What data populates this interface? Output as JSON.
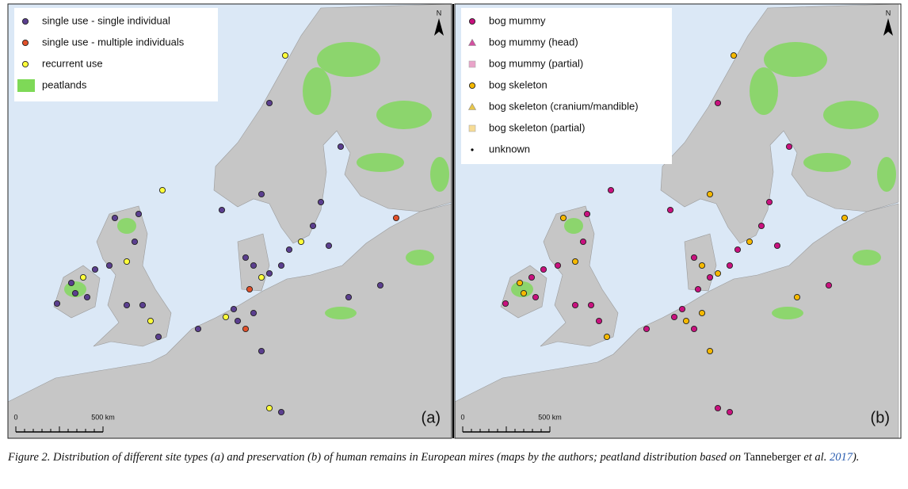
{
  "panels": [
    {
      "legend": [
        "single use - single individual",
        "single use - multiple individuals",
        "recurrent use",
        "peatlands"
      ],
      "north": "N",
      "scale_start": "0",
      "scale_end": "500 km",
      "tag": "(a)"
    },
    {
      "legend": [
        "bog mummy",
        "bog mummy (head)",
        "bog mummy (partial)",
        "bog skeleton",
        "bog skeleton (cranium/mandible)",
        "bog skeleton (partial)",
        "unknown"
      ],
      "north": "N",
      "scale_start": "0",
      "scale_end": "500 km",
      "tag": "(b)"
    }
  ],
  "caption": {
    "main": "Figure 2.  Distribution of different site types (a) and preservation (b) of human remains in European mires (maps by the authors; peatland distribution based on ",
    "author": "Tanneberger",
    "etal": " et al. ",
    "year": "2017",
    "end": ")."
  }
}
